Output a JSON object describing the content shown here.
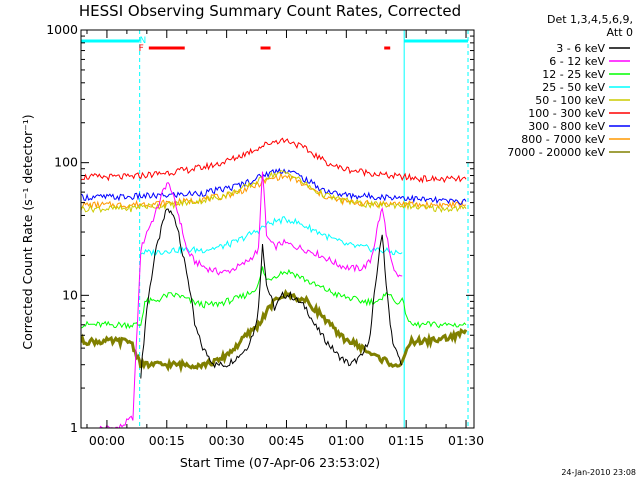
{
  "chart_data": {
    "type": "line",
    "title": "HESSI Observing Summary Count Rates, Corrected",
    "xlabel": "Start Time (07-Apr-06 23:53:02)",
    "ylabel": "Corrected Count Rate (s⁻¹ detector⁻¹)",
    "y_scale": "log",
    "ylim": [
      1,
      1000
    ],
    "xlim_minutes": [
      -6.5,
      92
    ],
    "y_ticks": [
      1,
      10,
      100,
      1000
    ],
    "y_tick_labels": [
      "1",
      "10",
      "100",
      "1000"
    ],
    "x_ticks_minutes": [
      0,
      15,
      30,
      45,
      60,
      75,
      90
    ],
    "x_tick_labels": [
      "00:00",
      "00:15",
      "00:30",
      "00:45",
      "01:00",
      "01:15",
      "01:30"
    ],
    "legend_header": [
      "Det 1,3,4,5,6,9,",
      "Att 0"
    ],
    "legend_position": "right",
    "footer_stamp": "24-Jan-2010 23:08",
    "flag_bars": {
      "cyan_spans_minutes": [
        [
          -6.5,
          8.2
        ],
        [
          74.5,
          90.5
        ]
      ],
      "N_label": "N",
      "N_minute": 9.0,
      "F_label": "F",
      "F_minute": 8.6,
      "red_spans_minutes": [
        [
          10.5,
          19.5
        ],
        [
          38.5,
          41
        ],
        [
          69.5,
          71
        ]
      ],
      "vertical_dashed_minutes": [
        8.2,
        90.5
      ],
      "vertical_solid_minutes": [
        74.5
      ]
    },
    "series": [
      {
        "name": "3 - 6 keV",
        "color": "#000000",
        "x": [
          8.5,
          10,
          12,
          14,
          15,
          16,
          17,
          18,
          19,
          20,
          21,
          22,
          24,
          27,
          30,
          33,
          35,
          37,
          38,
          39,
          40,
          42,
          44,
          46,
          48,
          50,
          52,
          55,
          58,
          61,
          64,
          66,
          67,
          68,
          69,
          70,
          71,
          72,
          73,
          74
        ],
        "y": [
          2.5,
          8,
          20,
          35,
          45,
          42,
          38,
          30,
          20,
          15,
          10,
          6,
          4,
          3,
          3,
          3.5,
          4,
          5.5,
          8,
          25,
          12,
          8,
          10,
          10,
          9,
          8,
          6,
          4.5,
          3.5,
          3,
          3.5,
          5,
          10,
          18,
          30,
          12,
          6,
          4,
          3.5,
          3
        ]
      },
      {
        "name": "6 - 12 keV",
        "color": "#ff00ff",
        "x": [
          -2,
          3,
          6.5,
          8.5,
          10,
          12,
          14,
          15,
          16,
          17,
          18,
          19,
          20,
          22,
          25,
          28,
          30,
          32,
          34,
          36,
          38,
          39,
          40,
          42,
          44,
          46,
          48,
          50,
          52,
          55,
          58,
          61,
          64,
          66,
          67,
          68,
          69,
          70,
          71,
          72,
          73,
          74
        ],
        "y": [
          1.0,
          1.0,
          1.2,
          22,
          30,
          40,
          60,
          70,
          65,
          50,
          40,
          30,
          22,
          18,
          16,
          15,
          15,
          16,
          17,
          19,
          22,
          90,
          28,
          23,
          25,
          24,
          23,
          22,
          21,
          19,
          17,
          16,
          16,
          18,
          24,
          35,
          45,
          30,
          19,
          15,
          14,
          14
        ]
      },
      {
        "name": "12 - 25 keV",
        "color": "#00ff00",
        "x": [
          -6.5,
          6,
          8.5,
          9.5,
          12,
          15,
          18,
          21,
          24,
          27,
          30,
          33,
          36,
          38,
          39,
          40,
          42,
          44,
          46,
          48,
          50,
          52,
          55,
          58,
          61,
          64,
          67,
          69,
          70,
          72,
          74,
          76,
          78,
          80,
          82,
          84,
          86,
          88,
          90
        ],
        "y": [
          6,
          6,
          6,
          9,
          9,
          10,
          10,
          9,
          8.5,
          8.5,
          9,
          9.5,
          10.5,
          12,
          16,
          13,
          14,
          15,
          15,
          14,
          13,
          12,
          11,
          10,
          9.5,
          9,
          9,
          9,
          11,
          9,
          9,
          6,
          6,
          6,
          6,
          6,
          6,
          6,
          6
        ]
      },
      {
        "name": "25 - 50 keV",
        "color": "#00ffff",
        "x": [
          8.5,
          12,
          16,
          20,
          24,
          28,
          32,
          35,
          38,
          40,
          42,
          44,
          46,
          48,
          50,
          52,
          54,
          56,
          60,
          64,
          68,
          72,
          74
        ],
        "y": [
          21,
          21,
          22,
          22,
          22,
          23,
          25,
          28,
          31,
          34,
          36,
          37,
          37,
          35,
          33,
          31,
          29,
          27,
          24,
          23,
          22,
          21,
          21
        ]
      },
      {
        "name": "50 - 100 keV",
        "color": "#cccc00",
        "x": [
          -6.5,
          0,
          6,
          8.5,
          12,
          16,
          20,
          24,
          28,
          32,
          36,
          40,
          42,
          44,
          46,
          48,
          50,
          52,
          54,
          56,
          58,
          62,
          66,
          70,
          74,
          78,
          82,
          86,
          90
        ],
        "y": [
          45,
          45,
          45,
          47,
          47,
          48,
          50,
          52,
          55,
          60,
          68,
          78,
          82,
          84,
          82,
          75,
          68,
          62,
          58,
          55,
          53,
          50,
          48,
          48,
          48,
          46,
          45,
          45,
          45
        ]
      },
      {
        "name": "100 - 300 keV",
        "color": "#ff0000",
        "x": [
          -6.5,
          0,
          6,
          8.5,
          12,
          16,
          20,
          24,
          28,
          32,
          36,
          40,
          42,
          44,
          46,
          48,
          50,
          52,
          54,
          56,
          58,
          62,
          66,
          70,
          74,
          78,
          82,
          86,
          90
        ],
        "y": [
          78,
          78,
          78,
          80,
          82,
          85,
          88,
          92,
          98,
          108,
          122,
          138,
          145,
          148,
          145,
          135,
          125,
          115,
          105,
          98,
          92,
          87,
          84,
          80,
          78,
          76,
          75,
          75,
          75
        ]
      },
      {
        "name": "300 - 800 keV",
        "color": "#0000ff",
        "x": [
          -6.5,
          0,
          6,
          8.5,
          12,
          16,
          20,
          24,
          28,
          32,
          36,
          40,
          42,
          44,
          46,
          48,
          50,
          52,
          54,
          56,
          58,
          62,
          66,
          70,
          74,
          78,
          82,
          86,
          90
        ],
        "y": [
          55,
          55,
          55,
          56,
          56,
          57,
          58,
          59,
          62,
          66,
          73,
          82,
          86,
          88,
          86,
          80,
          74,
          68,
          63,
          60,
          58,
          56,
          56,
          55,
          55,
          53,
          52,
          51,
          51
        ]
      },
      {
        "name": "800 - 7000 keV",
        "color": "#ff9900",
        "x": [
          -6.5,
          0,
          6,
          8.5,
          12,
          16,
          20,
          24,
          28,
          32,
          36,
          40,
          42,
          44,
          46,
          48,
          50,
          52,
          54,
          56,
          58,
          62,
          66,
          70,
          74,
          78,
          82,
          86,
          90
        ],
        "y": [
          48,
          48,
          48,
          49,
          49,
          50,
          51,
          53,
          55,
          59,
          65,
          73,
          77,
          79,
          77,
          72,
          66,
          61,
          57,
          54,
          52,
          50,
          49,
          49,
          49,
          48,
          48,
          48,
          48
        ]
      },
      {
        "name": "7000 - 20000 keV",
        "color": "#808000",
        "x": [
          -6.5,
          6,
          8.5,
          12,
          16,
          20,
          24,
          28,
          32,
          35,
          38,
          40,
          42,
          44,
          46,
          48,
          50,
          52,
          54,
          56,
          58,
          61,
          64,
          67,
          70,
          72,
          74,
          76,
          80,
          84,
          88,
          90
        ],
        "y": [
          4.5,
          4.5,
          3,
          3,
          3,
          3,
          3,
          3.2,
          4,
          5,
          6,
          7.5,
          9,
          10,
          10,
          9.5,
          9,
          8,
          7,
          6,
          5,
          4.5,
          4,
          3.5,
          3.2,
          3,
          3,
          4.5,
          4.5,
          4.7,
          5,
          5.5
        ]
      }
    ]
  }
}
